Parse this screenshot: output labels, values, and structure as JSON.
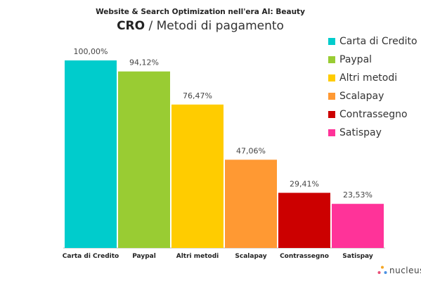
{
  "title": {
    "top": "Website & Search Optimization nell'era AI: Beauty",
    "main_bold": "CRO",
    "main_rest": " / Metodi di pagamento"
  },
  "logo": {
    "text": "nucleus",
    "icon": "nucleus-logo-icon"
  },
  "chart_data": {
    "type": "bar",
    "categories": [
      "Carta di Credito",
      "Paypal",
      "Altri metodi",
      "Scalapay",
      "Contrassegno",
      "Satispay"
    ],
    "values": [
      100.0,
      94.12,
      76.47,
      47.06,
      29.41,
      23.53
    ],
    "value_labels": [
      "100,00%",
      "94,12%",
      "76,47%",
      "47,06%",
      "29,41%",
      "23,53%"
    ],
    "colors": [
      "#00CCCC",
      "#99CC33",
      "#FFCC00",
      "#FF9933",
      "#CC0000",
      "#FF3399"
    ],
    "ylim": [
      0,
      100
    ],
    "grid": false,
    "legend_position": "right",
    "legend": [
      "Carta di Credito",
      "Paypal",
      "Altri metodi",
      "Scalapay",
      "Contrassegno",
      "Satispay"
    ]
  }
}
